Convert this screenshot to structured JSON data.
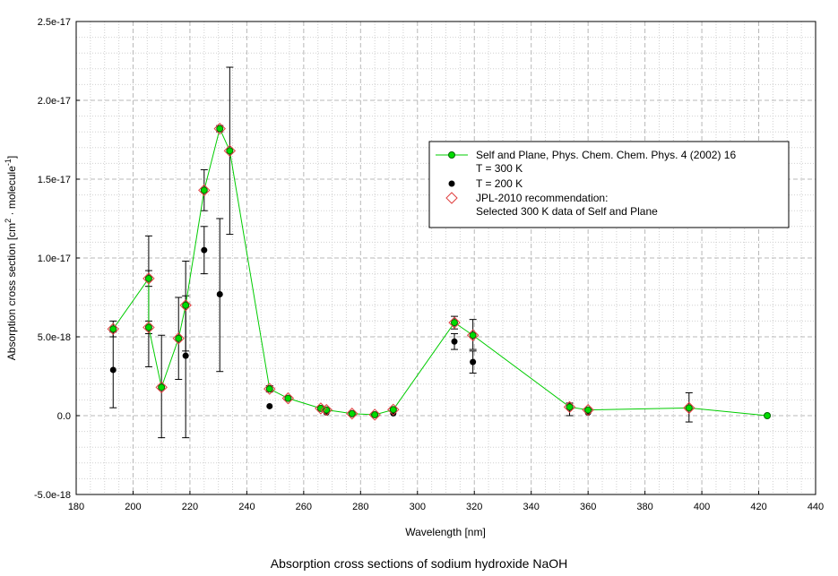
{
  "caption": "Absorption cross sections of sodium hydroxide NaOH",
  "chart_data": {
    "type": "scatter",
    "title": "",
    "xlabel": "Wavelength [nm]",
    "ylabel_main": "Absorption cross section [cm",
    "ylabel_sup1": "2",
    "ylabel_mid": " · molecule",
    "ylabel_sup2": "-1",
    "ylabel_end": "]",
    "xlim": [
      180,
      440
    ],
    "ylim": [
      -5e-18,
      2.5e-17
    ],
    "x_ticks": [
      180,
      200,
      220,
      240,
      260,
      280,
      300,
      320,
      340,
      360,
      380,
      400,
      420,
      440
    ],
    "y_ticks": [
      -5e-18,
      0,
      5e-18,
      1e-17,
      1.5e-17,
      2e-17,
      2.5e-17
    ],
    "y_tick_labels": [
      "-5.0e-18",
      "0.0",
      "5.0e-18",
      "1.0e-17",
      "1.5e-17",
      "2.0e-17",
      "2.5e-17"
    ],
    "grid": true,
    "legend_position": "right-middle",
    "colors": {
      "line": "#00cc00",
      "marker_fill": "#00dd00",
      "t200": "#000000",
      "jpl": "#e04040"
    },
    "series": [
      {
        "name": "Self and Plane, Phys. Chem. Chem. Phys. 4 (2002) 16",
        "legend_line2": "T = 300 K",
        "kind": "line-marker",
        "points": [
          {
            "x": 193,
            "y": 5.5e-18,
            "ylo": 5e-18,
            "yhi": 6e-18
          },
          {
            "x": 205.5,
            "y": 8.7e-18,
            "ylo": 8.2e-18,
            "yhi": 9.2e-18
          },
          {
            "x": 205.5,
            "y": 5.6e-18,
            "ylo": 5.2e-18,
            "yhi": 6e-18
          },
          {
            "x": 210,
            "y": 1.8e-18,
            "ylo": -1.4e-18,
            "yhi": 5.1e-18
          },
          {
            "x": 216,
            "y": 4.9e-18,
            "ylo": 2.3e-18,
            "yhi": 7.5e-18
          },
          {
            "x": 218.5,
            "y": 7e-18,
            "ylo": 4.1e-18,
            "yhi": 9.8e-18
          },
          {
            "x": 225,
            "y": 1.43e-17,
            "ylo": 1.3e-17,
            "yhi": 1.56e-17
          },
          {
            "x": 230.5,
            "y": 1.82e-17,
            "ylo": 1.8e-17,
            "yhi": 1.84e-17
          },
          {
            "x": 234,
            "y": 1.68e-17,
            "ylo": 1.15e-17,
            "yhi": 2.21e-17
          },
          {
            "x": 248,
            "y": 1.7e-18,
            "ylo": 1.5e-18,
            "yhi": 1.9e-18
          },
          {
            "x": 254.5,
            "y": 1.1e-18,
            "ylo": 1e-18,
            "yhi": 1.2e-18
          },
          {
            "x": 266,
            "y": 4.6e-19,
            "ylo": 4e-19,
            "yhi": 5.2e-19
          },
          {
            "x": 268,
            "y": 3.6e-19,
            "ylo": 3e-19,
            "yhi": 4.2e-19
          },
          {
            "x": 277,
            "y": 1.3e-19,
            "ylo": 5e-20,
            "yhi": 2.1e-19
          },
          {
            "x": 285,
            "y": 6e-20,
            "ylo": 2e-20,
            "yhi": 1e-19
          },
          {
            "x": 291.5,
            "y": 3.8e-19,
            "ylo": 3.2e-19,
            "yhi": 4.4e-19
          },
          {
            "x": 313,
            "y": 5.9e-18,
            "ylo": 5.5e-18,
            "yhi": 6.3e-18
          },
          {
            "x": 319.5,
            "y": 5.1e-18,
            "ylo": 4.2e-18,
            "yhi": 6.1e-18
          },
          {
            "x": 353.5,
            "y": 5.5e-19,
            "ylo": 0,
            "yhi": 8e-19
          },
          {
            "x": 360,
            "y": 3.6e-19,
            "ylo": 3e-19,
            "yhi": 4.2e-19
          },
          {
            "x": 395.5,
            "y": 4.9e-19,
            "ylo": -4e-19,
            "yhi": 1.45e-18
          },
          {
            "x": 423,
            "y": 0.0,
            "ylo": 0.0,
            "yhi": 0.0
          }
        ]
      },
      {
        "name": "T = 200 K",
        "kind": "marker",
        "points": [
          {
            "x": 193,
            "y": 2.9e-18,
            "ylo": 5e-19,
            "yhi": 5.3e-18
          },
          {
            "x": 205.5,
            "y": 5.6e-18,
            "ylo": 3.1e-18,
            "yhi": 1.14e-17
          },
          {
            "x": 218.5,
            "y": 3.8e-18,
            "ylo": -1.4e-18,
            "yhi": 7.6e-18
          },
          {
            "x": 225,
            "y": 1.05e-17,
            "ylo": 9e-18,
            "yhi": 1.2e-17
          },
          {
            "x": 230.5,
            "y": 7.7e-18,
            "ylo": 2.8e-18,
            "yhi": 1.25e-17
          },
          {
            "x": 248,
            "y": 6e-19
          },
          {
            "x": 268,
            "y": 2e-19
          },
          {
            "x": 277,
            "y": 1e-19
          },
          {
            "x": 291.5,
            "y": 1.5e-19
          },
          {
            "x": 313,
            "y": 4.7e-18,
            "ylo": 4.2e-18,
            "yhi": 5.2e-18
          },
          {
            "x": 319.5,
            "y": 3.4e-18,
            "ylo": 2.7e-18,
            "yhi": 4.1e-18
          },
          {
            "x": 353.5,
            "y": 5e-19
          },
          {
            "x": 360,
            "y": 2e-19
          },
          {
            "x": 423,
            "y": 0.0
          }
        ]
      },
      {
        "name": "JPL-2010 recommendation:",
        "legend_line2": "Selected 300 K data of Self and Plane",
        "kind": "open-diamond",
        "points": [
          {
            "x": 193,
            "y": 5.5e-18
          },
          {
            "x": 205.5,
            "y": 8.7e-18
          },
          {
            "x": 205.5,
            "y": 5.6e-18
          },
          {
            "x": 210,
            "y": 1.8e-18
          },
          {
            "x": 216,
            "y": 4.9e-18
          },
          {
            "x": 218.5,
            "y": 7e-18
          },
          {
            "x": 225,
            "y": 1.43e-17
          },
          {
            "x": 230.5,
            "y": 1.82e-17
          },
          {
            "x": 234,
            "y": 1.68e-17
          },
          {
            "x": 248,
            "y": 1.7e-18
          },
          {
            "x": 254.5,
            "y": 1.1e-18
          },
          {
            "x": 266,
            "y": 4.6e-19
          },
          {
            "x": 268,
            "y": 3.6e-19
          },
          {
            "x": 277,
            "y": 1.3e-19
          },
          {
            "x": 285,
            "y": 6e-20
          },
          {
            "x": 291.5,
            "y": 3.8e-19
          },
          {
            "x": 313,
            "y": 5.9e-18
          },
          {
            "x": 319.5,
            "y": 5.1e-18
          },
          {
            "x": 353.5,
            "y": 5.5e-19
          },
          {
            "x": 360,
            "y": 3.6e-19
          },
          {
            "x": 395.5,
            "y": 4.9e-19
          }
        ]
      }
    ]
  }
}
